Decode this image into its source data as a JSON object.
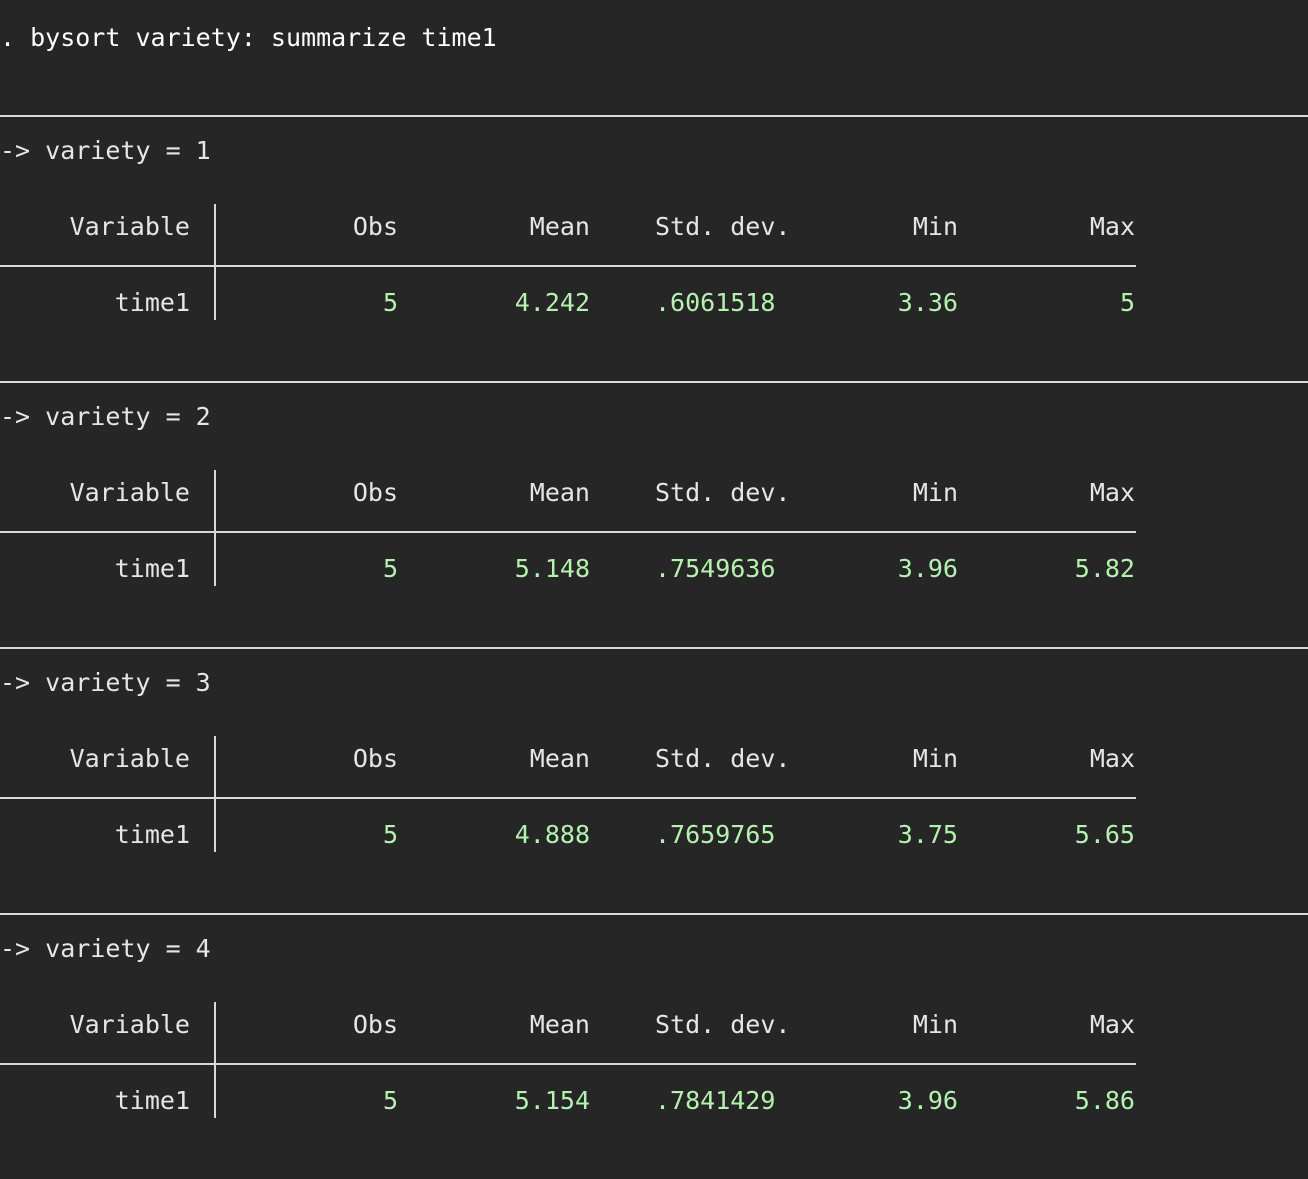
{
  "command": ". bysort variety: summarize time1",
  "table_headers": {
    "variable": "Variable",
    "obs": "Obs",
    "mean": "Mean",
    "std_dev": "Std. dev.",
    "min": "Min",
    "max": "Max"
  },
  "groups": [
    {
      "label": "-> variety = 1",
      "row": {
        "variable": "time1",
        "obs": "5",
        "mean": "4.242",
        "std_dev": ".6061518",
        "min": "3.36",
        "max": "5"
      }
    },
    {
      "label": "-> variety = 2",
      "row": {
        "variable": "time1",
        "obs": "5",
        "mean": "5.148",
        "std_dev": ".7549636",
        "min": "3.96",
        "max": "5.82"
      }
    },
    {
      "label": "-> variety = 3",
      "row": {
        "variable": "time1",
        "obs": "5",
        "mean": "4.888",
        "std_dev": ".7659765",
        "min": "3.75",
        "max": "5.65"
      }
    },
    {
      "label": "-> variety = 4",
      "row": {
        "variable": "time1",
        "obs": "5",
        "mean": "5.154",
        "std_dev": ".7841429",
        "min": "3.96",
        "max": "5.86"
      }
    }
  ],
  "colors": {
    "background": "#262626",
    "text": "#e6e6e6",
    "result_numbers": "#b5f2b0",
    "rules": "#d9d9d9"
  }
}
